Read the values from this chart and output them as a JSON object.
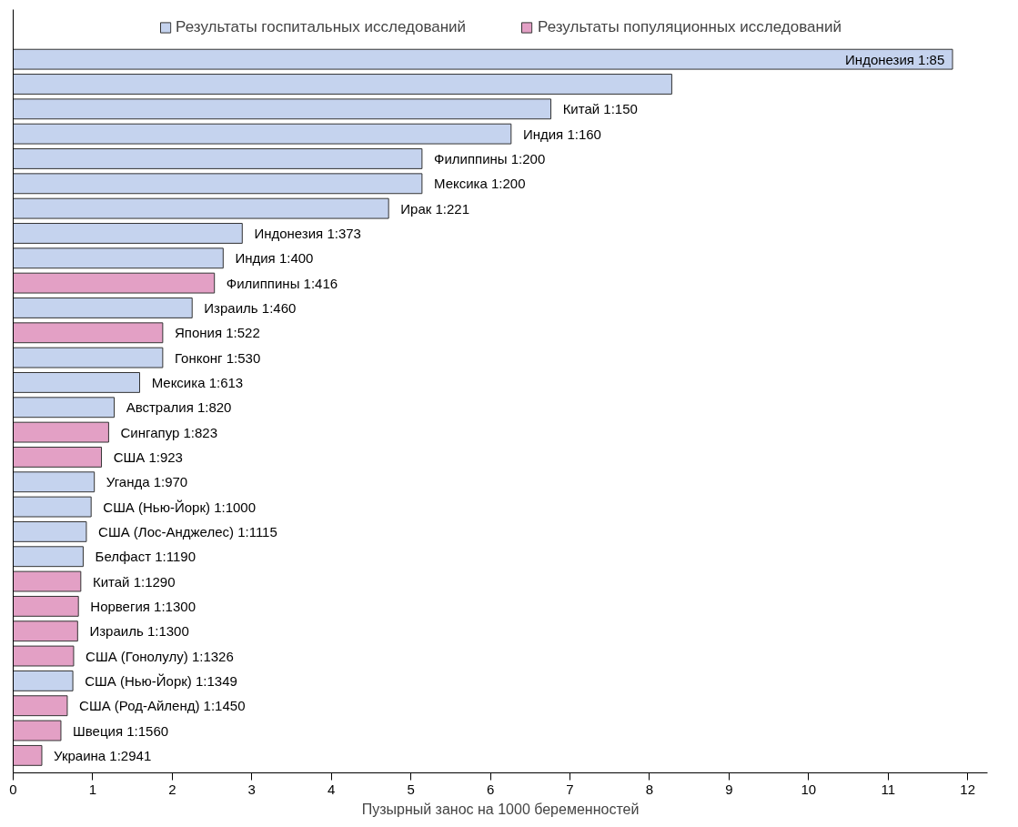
{
  "chart_data": {
    "type": "bar",
    "orientation": "horizontal",
    "xlabel": "Пузырный занос на 1000 беременностей",
    "categories": [
      "Индонезия 1:85",
      null,
      "Китай 1:150",
      "Индия 1:160",
      "Филиппины 1:200",
      "Мексика 1:200",
      "Ирак 1:221",
      "Индонезия 1:373",
      "Индия 1:400",
      "Филиппины 1:416",
      "Израиль 1:460",
      "Япония 1:522",
      "Гонконг 1:530",
      "Мексика 1:613",
      "Австралия 1:820",
      "Сингапур 1:823",
      "США 1:923",
      "Уганда 1:970",
      "США (Нью-Йорк) 1:1000",
      "США (Лос-Анджелес) 1:1115",
      "Белфаст 1:1190",
      "Китай 1:1290",
      "Норвегия 1:1300",
      "Израиль 1:1300",
      "США (Гонолулу) 1:1326",
      "США (Нью-Йорк) 1:1349",
      "США (Род-Айленд) 1:1450",
      "Швеция 1:1560",
      "Украина 1:2941"
    ],
    "series": [
      {
        "name": "Результаты госпитальных исследований",
        "color": "#c5d3ee",
        "values": [
          11.81,
          8.28,
          6.76,
          6.26,
          5.14,
          5.14,
          4.72,
          2.88,
          2.64,
          null,
          2.25,
          null,
          1.88,
          1.59,
          1.27,
          null,
          null,
          1.02,
          0.98,
          0.92,
          0.88,
          null,
          null,
          null,
          null,
          0.75,
          null,
          null,
          null
        ]
      },
      {
        "name": "Результаты популяционных исследований",
        "color": "#e3a0c5",
        "values": [
          null,
          null,
          null,
          null,
          null,
          null,
          null,
          null,
          null,
          2.53,
          null,
          1.88,
          null,
          null,
          null,
          1.2,
          1.11,
          null,
          null,
          null,
          null,
          0.85,
          0.82,
          0.81,
          0.76,
          null,
          0.68,
          0.6,
          0.36
        ]
      }
    ],
    "xlim": [
      0,
      12.25
    ],
    "xticks": [
      0,
      1,
      2,
      3,
      4,
      5,
      6,
      7,
      8,
      9,
      10,
      11,
      12
    ],
    "tick_labels": "x",
    "grid": false,
    "legend": "top"
  }
}
